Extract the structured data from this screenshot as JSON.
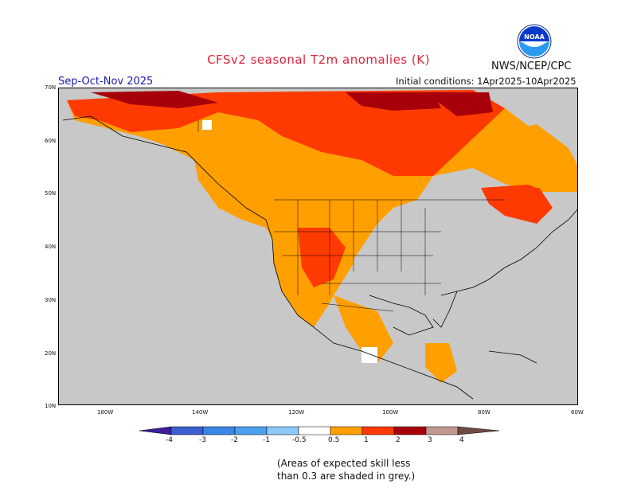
{
  "header": {
    "title": "CFSv2 seasonal T2m anomalies (K)",
    "organization": "NWS/NCEP/CPC",
    "season": "Sep-Oct-Nov 2025",
    "initial_conditions": "Initial conditions: 1Apr2025-10Apr2025",
    "logo_text": "NOAA"
  },
  "map": {
    "region": "North America",
    "lat_labels": [
      "70N",
      "60N",
      "50N",
      "40N",
      "30N",
      "20N",
      "10N"
    ],
    "lon_labels": [
      "180W",
      "140W",
      "120W",
      "100W",
      "80W",
      "60W"
    ],
    "background_grey": "#c8c8c8"
  },
  "colorbar": {
    "labels": [
      "-4",
      "-3",
      "-2",
      "-1",
      "-0.5",
      "0.5",
      "1",
      "2",
      "3",
      "4"
    ],
    "colors": [
      "#3a1e9e",
      "#3c5ed0",
      "#3a86e6",
      "#4aa0ee",
      "#8ec8f6",
      "#ffffff",
      "#ff9f00",
      "#ff3a00",
      "#a8000a",
      "#c09890",
      "#6e4c44"
    ]
  },
  "footnote": {
    "line1": "(Areas of expected skill less",
    "line2": "than 0.3 are shaded in grey.)"
  }
}
